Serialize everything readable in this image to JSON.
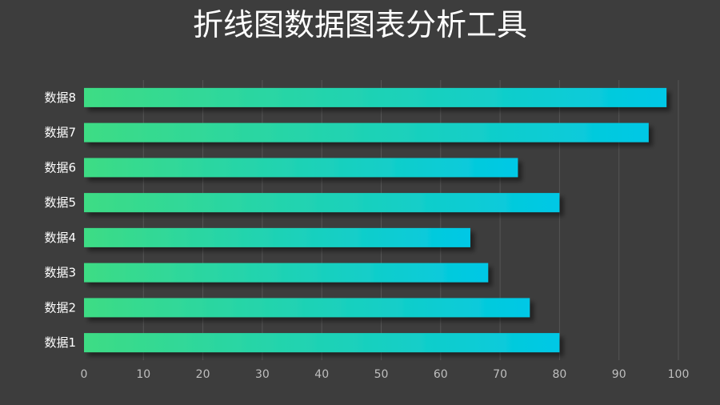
{
  "chart_data": {
    "type": "bar",
    "orientation": "horizontal",
    "title": "折线图数据图表分析工具",
    "categories": [
      "数据1",
      "数据2",
      "数据3",
      "数据4",
      "数据5",
      "数据6",
      "数据7",
      "数据8"
    ],
    "values": [
      80,
      75,
      68,
      65,
      80,
      73,
      95,
      98
    ],
    "xlim": [
      0,
      100
    ],
    "xticks": [
      "0",
      "10",
      "20",
      "30",
      "40",
      "50",
      "60",
      "70",
      "80",
      "90",
      "100"
    ],
    "grid": "vertical",
    "legend": "none",
    "colors": {
      "background": "#3d3d3d",
      "bar_start": "#3ddc84",
      "bar_end": "#00c8e6",
      "grid": "#555555",
      "tick_text": "#bfbfbf",
      "label_text": "#ffffff"
    }
  }
}
